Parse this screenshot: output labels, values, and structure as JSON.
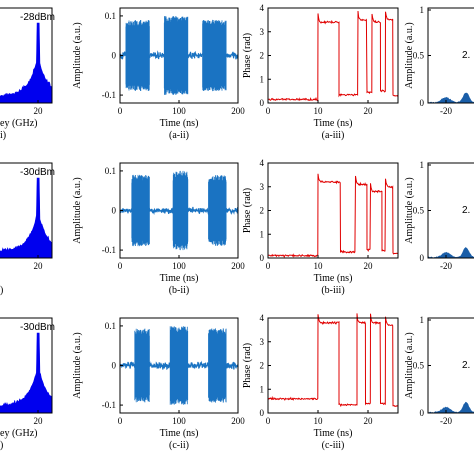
{
  "colors": {
    "spectrum": "#0000ee",
    "waveform": "#1a73c2",
    "phase": "#e00000",
    "recovered": "#1a5ea8"
  },
  "chart_data": [
    {
      "id": "a-i",
      "type": "area",
      "caption": "i)",
      "xlabel": "ey (GHz)",
      "x_ticks": [
        "20"
      ],
      "annotation": "-28dBm",
      "peak_x": 20
    },
    {
      "id": "a-ii",
      "type": "line",
      "caption": "(a-ii)",
      "xlabel": "Time (ns)",
      "ylabel": "Amplitude (a.u.)",
      "x_ticks": [
        "0",
        "100",
        "200"
      ],
      "y_ticks": [
        "0.1",
        "0",
        "-0.1"
      ],
      "xlim": [
        0,
        200
      ],
      "ylim": [
        -0.12,
        0.12
      ],
      "bursts": [
        [
          10,
          50,
          0.09
        ],
        [
          75,
          115,
          0.1
        ],
        [
          140,
          180,
          0.09
        ]
      ],
      "baseline_amp": 0.012
    },
    {
      "id": "a-iii",
      "type": "line",
      "caption": "(a-iii)",
      "xlabel": "Time (ns)",
      "ylabel": "Phase (rad)",
      "x_ticks": [
        "0",
        "10",
        "20"
      ],
      "y_ticks": [
        "0",
        "1",
        "2",
        "3",
        "4"
      ],
      "xlim": [
        0,
        26
      ],
      "ylim": [
        0,
        4
      ],
      "steps": [
        [
          0,
          0.15
        ],
        [
          10,
          3.4
        ],
        [
          14.2,
          0.35
        ],
        [
          18,
          3.5
        ],
        [
          19.8,
          0.45
        ],
        [
          20.8,
          3.4
        ],
        [
          22.5,
          0.5
        ],
        [
          23.5,
          3.5
        ],
        [
          25,
          0.3
        ]
      ]
    },
    {
      "id": "a-iv",
      "type": "area",
      "ylabel": "Amplitude (a.u.)",
      "x_ticks": [
        "-20"
      ],
      "y_ticks": [
        "1",
        "0.5",
        "0"
      ],
      "annotation": "2."
    },
    {
      "id": "b-i",
      "type": "area",
      "caption": ")",
      "xlabel": "",
      "x_ticks": [
        "20"
      ],
      "annotation": "-30dBm",
      "peak_x": 20
    },
    {
      "id": "b-ii",
      "type": "line",
      "caption": "(b-ii)",
      "xlabel": "Time (ns)",
      "ylabel": "Amplitude (a.u.)",
      "x_ticks": [
        "0",
        "100",
        "200"
      ],
      "y_ticks": [
        "0.1",
        "0",
        "-0.1"
      ],
      "xlim": [
        0,
        200
      ],
      "ylim": [
        -0.12,
        0.12
      ],
      "bursts": [
        [
          20,
          50,
          0.09
        ],
        [
          90,
          115,
          0.1
        ],
        [
          150,
          180,
          0.09
        ]
      ],
      "baseline_amp": 0.01
    },
    {
      "id": "b-iii",
      "type": "line",
      "caption": "(b-iii)",
      "xlabel": "Time (ns)",
      "ylabel": "Phase (rad)",
      "x_ticks": [
        "0",
        "10",
        "20"
      ],
      "y_ticks": [
        "0",
        "1",
        "2",
        "3",
        "4"
      ],
      "xlim": [
        0,
        26
      ],
      "ylim": [
        0,
        4
      ],
      "steps": [
        [
          0,
          0.1
        ],
        [
          10,
          3.2
        ],
        [
          14.5,
          0.25
        ],
        [
          17.5,
          3.1
        ],
        [
          19.8,
          0.35
        ],
        [
          20.5,
          2.8
        ],
        [
          22.8,
          0.3
        ],
        [
          23.5,
          3.0
        ],
        [
          25,
          0.2
        ]
      ]
    },
    {
      "id": "b-iv",
      "type": "area",
      "ylabel": "Amplitude (a.u.)",
      "x_ticks": [
        "-20"
      ],
      "y_ticks": [
        "1",
        "0.5",
        "0"
      ],
      "annotation": "2."
    },
    {
      "id": "c-i",
      "type": "area",
      "caption": ")",
      "xlabel": "ey (GHz)",
      "x_ticks": [
        "20"
      ],
      "annotation": "-30dBm",
      "peak_x": 20
    },
    {
      "id": "c-ii",
      "type": "line",
      "caption": "(c-ii)",
      "xlabel": "Time (ns)",
      "ylabel": "Amplitude (a.u.)",
      "x_ticks": [
        "0",
        "100",
        "200"
      ],
      "y_ticks": [
        "0.1",
        "0",
        "-0.1"
      ],
      "xlim": [
        0,
        200
      ],
      "ylim": [
        -0.12,
        0.12
      ],
      "bursts": [
        [
          25,
          50,
          0.095
        ],
        [
          85,
          115,
          0.1
        ],
        [
          150,
          180,
          0.095
        ]
      ],
      "baseline_amp": 0.012
    },
    {
      "id": "c-iii",
      "type": "line",
      "caption": "(c-iii)",
      "xlabel": "Time (ns)",
      "ylabel": "Phase (rad)",
      "x_ticks": [
        "0",
        "10",
        "20"
      ],
      "y_ticks": [
        "0",
        "1",
        "2",
        "3",
        "4"
      ],
      "xlim": [
        0,
        26
      ],
      "ylim": [
        0,
        4
      ],
      "steps": [
        [
          0,
          0.6
        ],
        [
          10,
          3.8
        ],
        [
          14.2,
          0.35
        ],
        [
          17.8,
          3.8
        ],
        [
          19.5,
          0.4
        ],
        [
          20.5,
          3.8
        ],
        [
          22.5,
          0.4
        ],
        [
          23.5,
          3.7
        ],
        [
          25,
          0.3
        ]
      ]
    },
    {
      "id": "c-iv",
      "type": "area",
      "ylabel": "Amplitude (a.u.)",
      "x_ticks": [
        "-20"
      ],
      "y_ticks": [
        "1",
        "0.5",
        "0"
      ],
      "annotation": "2."
    }
  ]
}
